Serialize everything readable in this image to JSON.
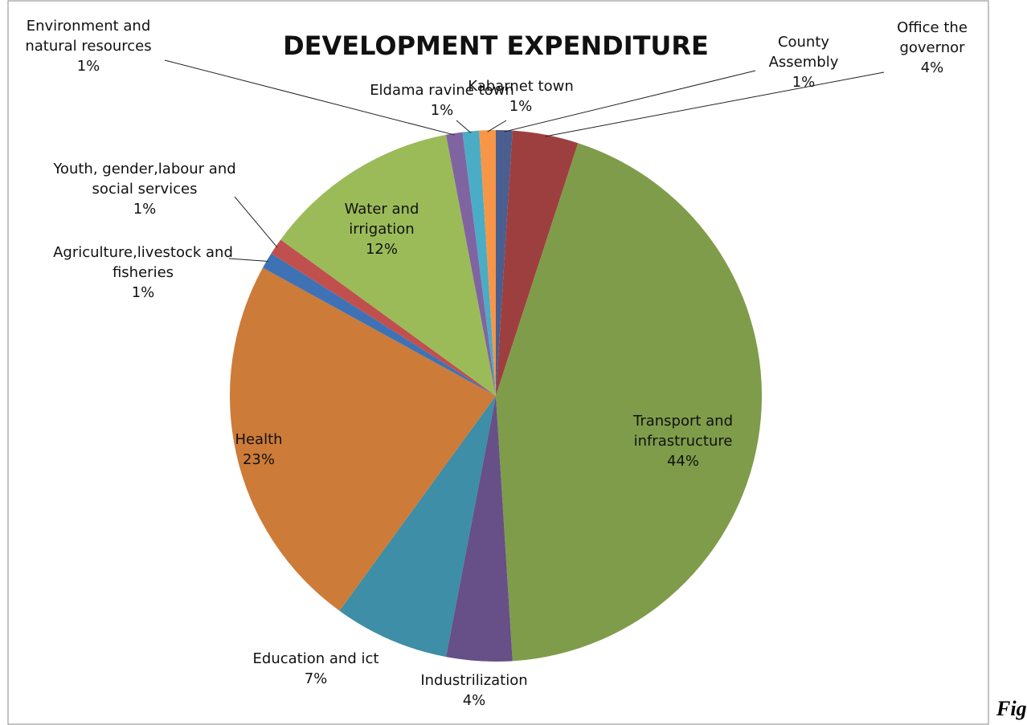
{
  "chart_data": {
    "type": "pie",
    "title": "DEVELOPMENT EXPENDITURE",
    "categories": [
      "County Assembly",
      "Office the governor",
      "Transport and infrastructure",
      "Industrilization",
      "Education and ict",
      "Health",
      "Agriculture,livestock and fisheries",
      "Youth, gender,labour and social services",
      "Water and irrigation",
      "Environment and natural resources",
      "Eldama ravine town",
      "Kabarnet town"
    ],
    "values": [
      1,
      4,
      44,
      4,
      7,
      23,
      1,
      1,
      12,
      1,
      1,
      1
    ],
    "value_labels": [
      "1%",
      "4%",
      "44%",
      "4%",
      "7%",
      "23%",
      "1%",
      "1%",
      "12%",
      "1%",
      "1%",
      "1%"
    ],
    "colors": [
      "#4a5e8f",
      "#9e3f3f",
      "#7f9c4a",
      "#674f87",
      "#3d8ea6",
      "#cd7b38",
      "#3f72b5",
      "#c0504d",
      "#9bbb59",
      "#8064a2",
      "#4bacc6",
      "#f79646"
    ],
    "caption": "Fig"
  }
}
